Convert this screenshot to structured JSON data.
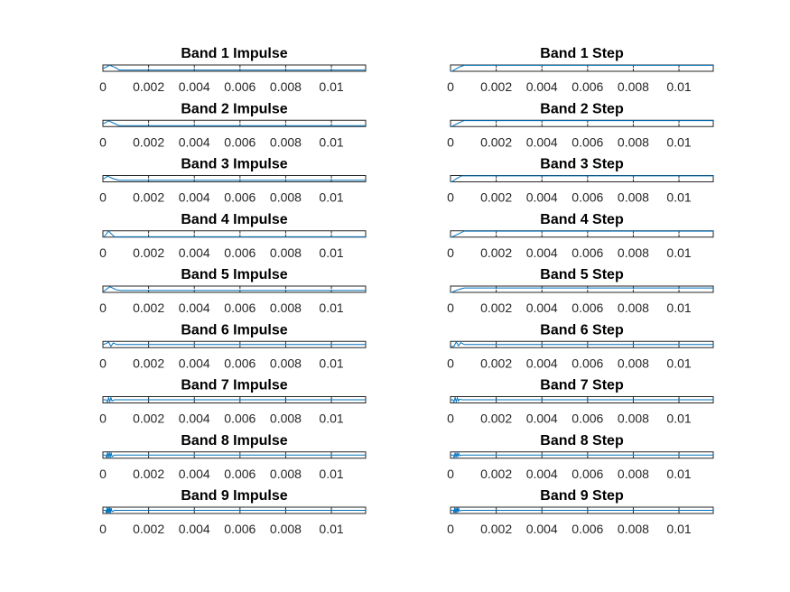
{
  "figure": {
    "background": "#ffffff",
    "axis_color": "#262626"
  },
  "chart_data": {
    "type": "line",
    "layout": "grid",
    "rows": 9,
    "columns": 2,
    "xlim": [
      0,
      0.0115
    ],
    "x_ticks": [
      0,
      0.002,
      0.004,
      0.006,
      0.008,
      0.01
    ],
    "x_tick_labels": [
      "0",
      "0.002",
      "0.004",
      "0.006",
      "0.008",
      "0.01"
    ],
    "line_color": "#0072bd",
    "panels": [
      {
        "title": "Band 1 Impulse",
        "ylim": [
          -1,
          1
        ],
        "series": [
          {
            "x": [
              0,
              5e-05,
              0.0003,
              0.0006,
              0.0007,
              0.0115
            ],
            "y": [
              0,
              0,
              0.9,
              0,
              -0.6,
              -0.6
            ]
          }
        ]
      },
      {
        "title": "Band 1 Step",
        "ylim": [
          0,
          1
        ],
        "series": [
          {
            "x": [
              0,
              5e-05,
              0.0004,
              0.0006,
              0.0115
            ],
            "y": [
              0,
              0,
              0.7,
              0.95,
              0.95
            ]
          }
        ]
      },
      {
        "title": "Band 2 Impulse",
        "ylim": [
          -1,
          1
        ],
        "series": [
          {
            "x": [
              0,
              5e-05,
              0.00025,
              0.0005,
              0.0007,
              0.0115
            ],
            "y": [
              0,
              0,
              0.8,
              0,
              -0.7,
              -0.7
            ]
          }
        ]
      },
      {
        "title": "Band 2 Step",
        "ylim": [
          0,
          1
        ],
        "series": [
          {
            "x": [
              0,
              5e-05,
              0.0004,
              0.0006,
              0.0115
            ],
            "y": [
              0,
              0,
              0.65,
              0.95,
              0.95
            ]
          }
        ]
      },
      {
        "title": "Band 3 Impulse",
        "ylim": [
          -1,
          1
        ],
        "series": [
          {
            "x": [
              0,
              5e-05,
              0.0002,
              0.00045,
              0.0007,
              0.0115
            ],
            "y": [
              0,
              0,
              0.8,
              0,
              -0.5,
              -0.5
            ]
          }
        ]
      },
      {
        "title": "Band 3 Step",
        "ylim": [
          0,
          1
        ],
        "series": [
          {
            "x": [
              0,
              5e-05,
              0.0003,
              0.0005,
              0.0115
            ],
            "y": [
              0,
              0,
              0.6,
              0.95,
              0.95
            ]
          }
        ]
      },
      {
        "title": "Band 4 Impulse",
        "ylim": [
          -1,
          1
        ],
        "series": [
          {
            "x": [
              0,
              5e-05,
              0.00025,
              0.0005,
              0.0006,
              0.0115
            ],
            "y": [
              -0.9,
              -0.9,
              0.9,
              -0.9,
              -0.9,
              -0.9
            ]
          }
        ]
      },
      {
        "title": "Band 4 Step",
        "ylim": [
          0,
          1
        ],
        "series": [
          {
            "x": [
              0,
              5e-05,
              0.0004,
              0.0006,
              0.0115
            ],
            "y": [
              0,
              0,
              0.6,
              0.95,
              0.95
            ]
          }
        ]
      },
      {
        "title": "Band 5 Impulse",
        "ylim": [
          -1,
          1
        ],
        "series": [
          {
            "x": [
              0,
              5e-05,
              0.0003,
              0.0006,
              0.0008,
              0.0115
            ],
            "y": [
              -0.6,
              -0.6,
              0.8,
              -0.2,
              -0.4,
              -0.4
            ]
          }
        ]
      },
      {
        "title": "Band 5 Step",
        "ylim": [
          0,
          1
        ],
        "series": [
          {
            "x": [
              0,
              5e-05,
              0.0003,
              0.0006,
              0.0115
            ],
            "y": [
              0,
              0,
              0.4,
              0.7,
              0.7
            ]
          }
        ]
      },
      {
        "title": "Band 6 Impulse",
        "ylim": [
          -1,
          1
        ],
        "series": [
          {
            "x": [
              0,
              0.00015,
              0.00025,
              0.00035,
              0.00045,
              0.0006,
              0.0115
            ],
            "y": [
              0,
              0.3,
              0.8,
              -0.6,
              0.5,
              0,
              0
            ]
          }
        ]
      },
      {
        "title": "Band 6 Step",
        "ylim": [
          0,
          1
        ],
        "series": [
          {
            "x": [
              0,
              0.00015,
              0.00025,
              0.00035,
              0.00045,
              0.0006,
              0.0115
            ],
            "y": [
              0.2,
              0.2,
              0.9,
              0.3,
              0.8,
              0.5,
              0.5
            ]
          }
        ]
      },
      {
        "title": "Band 7 Impulse",
        "ylim": [
          -1,
          1
        ],
        "series": [
          {
            "x": [
              0,
              0.00015,
              0.0002,
              0.00025,
              0.0003,
              0.00035,
              0.0004,
              0.0005,
              0.0115
            ],
            "y": [
              0,
              0,
              -0.8,
              0.8,
              -0.6,
              0.7,
              -0.4,
              0,
              0
            ]
          }
        ]
      },
      {
        "title": "Band 7 Step",
        "ylim": [
          0,
          1
        ],
        "series": [
          {
            "x": [
              0,
              0.0001,
              0.00015,
              0.0002,
              0.00025,
              0.0003,
              0.00035,
              0.0004,
              0.0005,
              0.0115
            ],
            "y": [
              0.5,
              0.5,
              0.1,
              0.9,
              0.2,
              0.8,
              0.3,
              0.6,
              0.5,
              0.5
            ]
          }
        ]
      },
      {
        "title": "Band 8 Impulse",
        "ylim": [
          -1,
          1
        ],
        "series": [
          {
            "x": [
              0,
              0.00012,
              0.00016,
              0.0002,
              0.00024,
              0.00028,
              0.00032,
              0.00036,
              0.0004,
              0.0005,
              0.0115
            ],
            "y": [
              0,
              0,
              -0.9,
              0.9,
              -0.9,
              0.9,
              -0.8,
              0.8,
              -0.5,
              0,
              0
            ]
          }
        ]
      },
      {
        "title": "Band 8 Step",
        "ylim": [
          0,
          1
        ],
        "series": [
          {
            "x": [
              0,
              0.00012,
              0.00016,
              0.0002,
              0.00024,
              0.00028,
              0.00032,
              0.00036,
              0.0004,
              0.0005,
              0.0115
            ],
            "y": [
              0.5,
              0.5,
              0.1,
              0.9,
              0.1,
              0.9,
              0.2,
              0.8,
              0.4,
              0.5,
              0.5
            ]
          }
        ]
      },
      {
        "title": "Band 9 Impulse",
        "ylim": [
          -1,
          1
        ],
        "series": [
          {
            "x": [
              0,
              0.00012,
              0.00015,
              0.00018,
              0.00021,
              0.00024,
              0.00027,
              0.0003,
              0.00033,
              0.00036,
              0.0004,
              0.0005,
              0.0115
            ],
            "y": [
              0,
              0,
              -0.9,
              0.9,
              -0.9,
              0.9,
              -0.9,
              0.9,
              -0.8,
              0.7,
              -0.4,
              0,
              0
            ]
          }
        ]
      },
      {
        "title": "Band 9 Step",
        "ylim": [
          0,
          1
        ],
        "series": [
          {
            "x": [
              0,
              0.00012,
              0.00015,
              0.00018,
              0.00021,
              0.00024,
              0.00027,
              0.0003,
              0.00033,
              0.00036,
              0.0004,
              0.0005,
              0.0115
            ],
            "y": [
              0.5,
              0.5,
              0.1,
              0.9,
              0.1,
              0.9,
              0.1,
              0.9,
              0.2,
              0.8,
              0.4,
              0.5,
              0.5
            ]
          }
        ]
      }
    ]
  }
}
